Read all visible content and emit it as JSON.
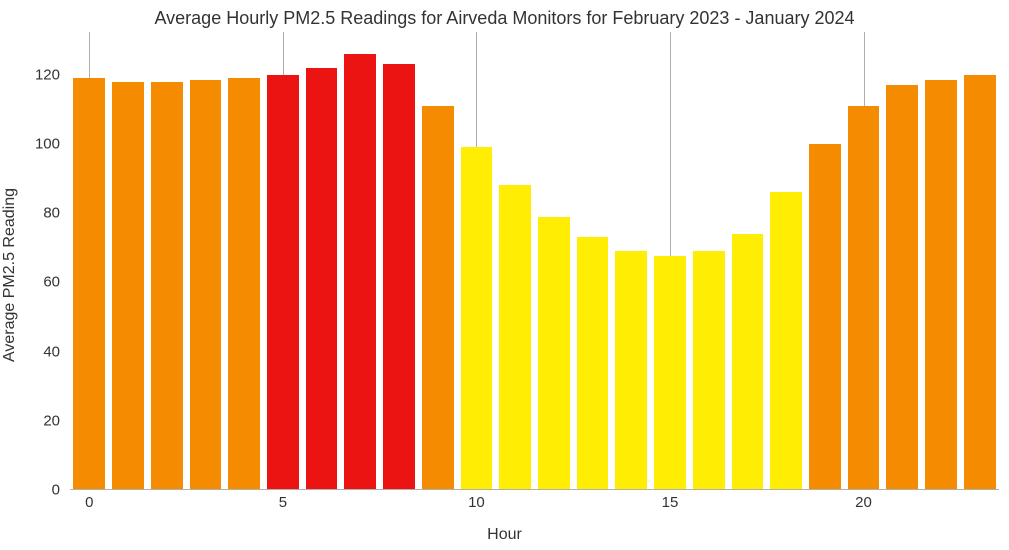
{
  "chart": {
    "type": "bar",
    "title": "Average Hourly PM2.5 Readings for Airveda Monitors for February 2023 - January 2024",
    "title_fontsize": 18,
    "title_color": "#333333",
    "xlabel": "Hour",
    "ylabel": "Average PM2.5 Reading",
    "label_fontsize": 16,
    "tick_fontsize": 15,
    "label_color": "#333333",
    "background_color": "#ffffff",
    "grid_color": "#b0b0b0",
    "axis_line_color": "#b0b0b0",
    "ylim": [
      0,
      130
    ],
    "yticks": [
      0,
      20,
      40,
      60,
      80,
      100,
      120
    ],
    "xticks": [
      0,
      5,
      10,
      15,
      20
    ],
    "bar_width": 0.82,
    "categories": [
      0,
      1,
      2,
      3,
      4,
      5,
      6,
      7,
      8,
      9,
      10,
      11,
      12,
      13,
      14,
      15,
      16,
      17,
      18,
      19,
      20,
      21,
      22,
      23
    ],
    "values": [
      119,
      118,
      118,
      118.5,
      119,
      120,
      122,
      126,
      123,
      111,
      99,
      88,
      79,
      73,
      69,
      67.5,
      69,
      74,
      86,
      100,
      111,
      117,
      118.5,
      120
    ],
    "bar_colors": [
      "#f58b00",
      "#f58b00",
      "#f58b00",
      "#f58b00",
      "#f58b00",
      "#ec1313",
      "#ec1313",
      "#ec1313",
      "#ec1313",
      "#f58b00",
      "#ffee04",
      "#ffee04",
      "#ffee04",
      "#ffee04",
      "#ffee04",
      "#ffee04",
      "#ffee04",
      "#ffee04",
      "#ffee04",
      "#f58b00",
      "#f58b00",
      "#f58b00",
      "#f58b00",
      "#f58b00"
    ]
  }
}
